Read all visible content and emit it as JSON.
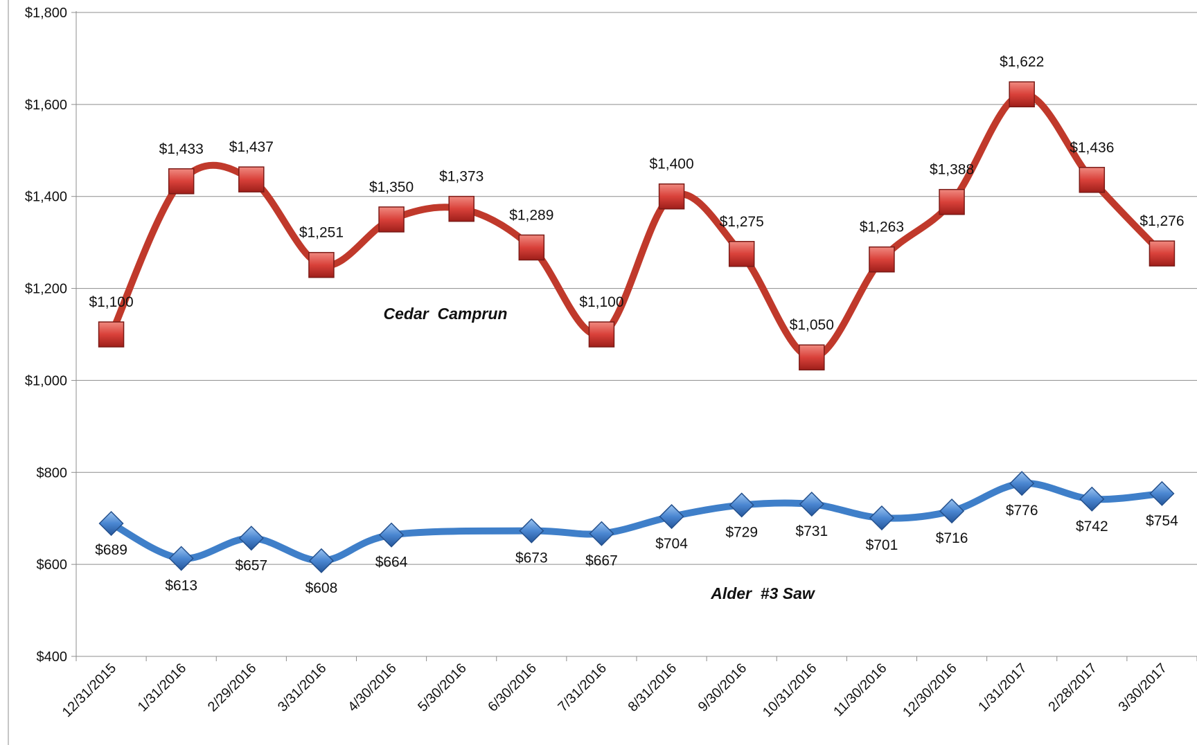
{
  "chart_data": {
    "type": "line",
    "title": "",
    "xlabel": "",
    "ylabel": "",
    "categories": [
      "12/31/2015",
      "1/31/2016",
      "2/29/2016",
      "3/31/2016",
      "4/30/2016",
      "5/30/2016",
      "6/30/2016",
      "7/31/2016",
      "8/31/2016",
      "9/30/2016",
      "10/31/2016",
      "11/30/2016",
      "12/30/2016",
      "1/31/2017",
      "2/28/2017",
      "3/30/2017"
    ],
    "ylim": [
      400,
      1800
    ],
    "ytick_step": 200,
    "yticks": [
      "$400",
      "$600",
      "$800",
      "$1,000",
      "$1,200",
      "$1,400",
      "$1,600",
      "$1,800"
    ],
    "grid": true,
    "legend": "none",
    "series": [
      {
        "name": "Cedar  Camprun",
        "color": "#c0392b",
        "marker": "square",
        "values": [
          1100,
          1433,
          1437,
          1251,
          1350,
          1373,
          1289,
          1100,
          1400,
          1275,
          1050,
          1263,
          1388,
          1622,
          1436,
          1276
        ],
        "labels": [
          "$1,100",
          "$1,433",
          "$1,437",
          "$1,251",
          "$1,350",
          "$1,373",
          "$1,289",
          "$1,100",
          "$1,400",
          "$1,275",
          "$1,050",
          "$1,263",
          "$1,388",
          "$1,622",
          "$1,436",
          "$1,276"
        ]
      },
      {
        "name": "Alder  #3 Saw",
        "color": "#3f7fc9",
        "marker": "diamond",
        "values": [
          689,
          613,
          657,
          608,
          664,
          null,
          673,
          667,
          704,
          729,
          731,
          701,
          716,
          776,
          742,
          754
        ],
        "labels": [
          "$689",
          "$613",
          "$657",
          "$608",
          "$664",
          "",
          "$673",
          "$667",
          "$704",
          "$729",
          "$731",
          "$701",
          "$716",
          "$776",
          "$742",
          "$754"
        ]
      }
    ]
  }
}
